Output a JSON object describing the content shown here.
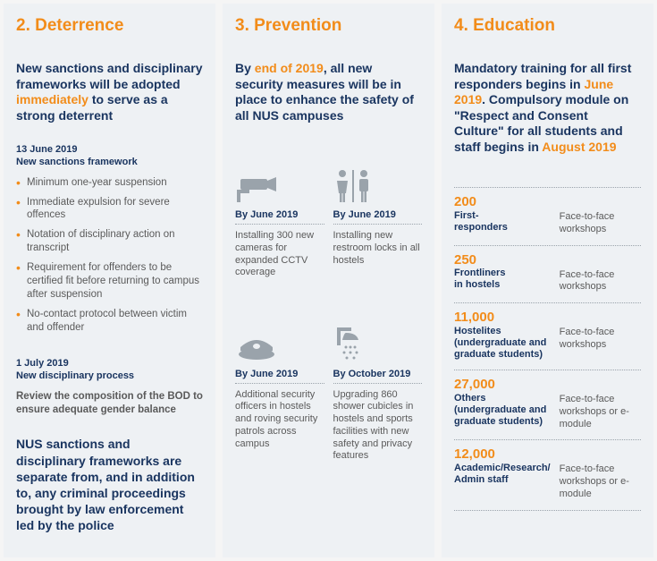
{
  "colors": {
    "orange": "#f28c1a",
    "navy": "#1a3560",
    "body": "#5a5a5a",
    "panel_bg": "#eef1f4",
    "icon_gray": "#9aa3ab",
    "dotted": "#9aa3ab"
  },
  "typography": {
    "title_fontsize": 19,
    "intro_fontsize": 14,
    "body_fontsize": 11.5,
    "edu_num_fontsize": 15
  },
  "deterrence": {
    "title_prefix": "2. ",
    "title": "Deterrence",
    "intro_pre": "New sanctions and disciplinary frameworks will be adopted ",
    "intro_orange": "immediately",
    "intro_post": " to serve as a strong deterrent",
    "date1_line1": "13 June 2019",
    "date1_line2": "New sanctions framework",
    "bullets": [
      "Minimum one-year suspension",
      "Immediate expulsion for severe offences",
      "Notation of disciplinary action on transcript",
      "Requirement for offenders to be certified fit before returning to campus after suspension",
      "No-contact protocol between victim and offender"
    ],
    "date2_line1": "1 July 2019",
    "date2_line2": "New disciplinary process",
    "review": "Review the composition of the BOD to ensure adequate gender balance",
    "footer": "NUS sanctions and disciplinary frameworks are separate from, and in addition to, any criminal proceedings brought by law enforcement led by the police"
  },
  "prevention": {
    "title_prefix": "3. ",
    "title": "Prevention",
    "intro_pre": "By ",
    "intro_orange": "end of 2019",
    "intro_post": ", all new security measures will be in place to enhance the safety of all NUS campuses",
    "cells": [
      {
        "icon": "cctv-icon",
        "date": "By June 2019",
        "desc": "Installing 300 new cameras for expanded CCTV coverage"
      },
      {
        "icon": "restroom-icon",
        "date": "By June 2019",
        "desc": "Installing new restroom locks in all hostels"
      },
      {
        "icon": "guard-cap-icon",
        "date": "By June 2019",
        "desc": "Additional security officers in hostels and roving security patrols across campus"
      },
      {
        "icon": "shower-icon",
        "date": "By October 2019",
        "desc": "Upgrading 860 shower cubicles in hostels and sports facilities with new safety and privacy features"
      }
    ]
  },
  "education": {
    "title_prefix": "4. ",
    "title": "Education",
    "intro_pre": "Mandatory training for all first responders begins in ",
    "intro_orange1": "June 2019",
    "intro_mid": ". Compulsory module on \"Respect and Consent Culture\" for all students and staff begins in ",
    "intro_orange2": "August 2019",
    "rows": [
      {
        "num": "200",
        "label": "First-\nresponders",
        "method": "Face-to-face workshops"
      },
      {
        "num": "250",
        "label": "Frontliners\nin hostels",
        "method": "Face-to-face workshops"
      },
      {
        "num": "11,000",
        "label": "Hostelites (undergraduate and graduate students)",
        "method": "Face-to-face workshops"
      },
      {
        "num": "27,000",
        "label": "Others (undergraduate and graduate students)",
        "method": "Face-to-face workshops or e-module"
      },
      {
        "num": "12,000",
        "label": "Academic/Research/\nAdmin staff",
        "method": "Face-to-face workshops or e-module"
      }
    ]
  }
}
